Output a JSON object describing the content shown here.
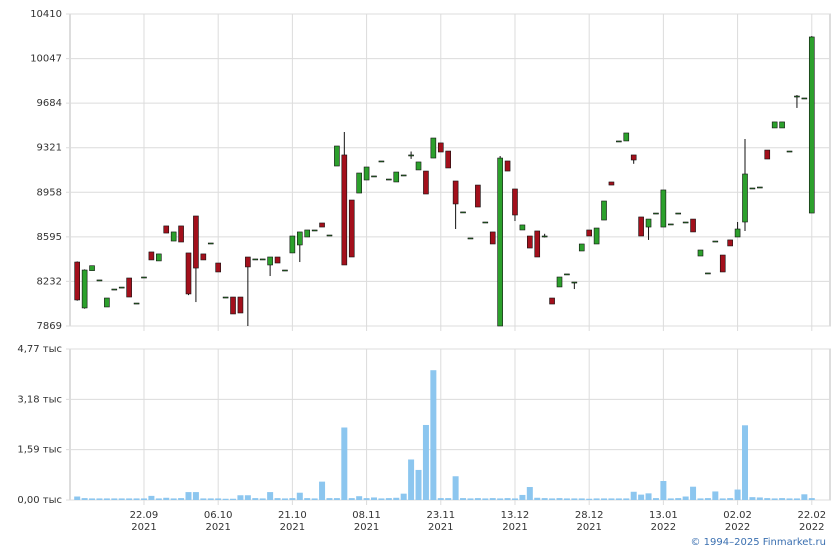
{
  "chart_data": [
    {
      "type": "candlestick",
      "ylim": [
        7869,
        10410
      ],
      "yticks": [
        7869,
        8232,
        8595,
        8958,
        9321,
        9684,
        10047,
        10410
      ],
      "grid": true,
      "up_color": "#2ca02c",
      "down_color": "#a3101c",
      "open": [
        8390,
        8016,
        8320,
        8244,
        8024,
        8170,
        8186,
        8260,
        8056,
        8268,
        8472,
        8399,
        8684,
        8561,
        8684,
        8464,
        8765,
        8456,
        8545,
        8382,
        8105,
        8105,
        8105,
        8431,
        8415,
        8415,
        8366,
        8431,
        8325,
        8464,
        8529,
        8594,
        8651,
        8708,
        8610,
        9172,
        9262,
        8895,
        8952,
        9058,
        9091,
        9213,
        9066,
        9042,
        9099,
        9262,
        9140,
        9131,
        9237,
        9360,
        9294,
        9050,
        8798,
        8586,
        9017,
        8716,
        8635,
        7869,
        9213,
        8985,
        8651,
        8602,
        8643,
        8602,
        8097,
        8187,
        8293,
        8227,
        8480,
        8651,
        8537,
        8732,
        9042,
        9376,
        9376,
        9262,
        8757,
        8675,
        8789,
        8675,
        8700,
        8789,
        8716,
        8740,
        8439,
        8301,
        8561,
        8447,
        8570,
        8594,
        8716,
        8993,
        9001,
        9302,
        9482,
        9482,
        9294,
        9742,
        9726,
        8789
      ],
      "high": [
        8395,
        8330,
        8360,
        8244,
        8097,
        8170,
        8186,
        8260,
        8056,
        8268,
        8472,
        8456,
        8684,
        8635,
        8684,
        8464,
        8765,
        8456,
        8545,
        8382,
        8105,
        8105,
        8105,
        8431,
        8415,
        8415,
        8431,
        8431,
        8325,
        8602,
        8635,
        8651,
        8651,
        8708,
        8610,
        9335,
        9449,
        8895,
        9115,
        9164,
        9091,
        9213,
        9066,
        9123,
        9099,
        9290,
        9205,
        9131,
        9400,
        9360,
        9294,
        9050,
        8798,
        8586,
        9017,
        8716,
        8635,
        9254,
        9213,
        8985,
        8692,
        8602,
        8643,
        8620,
        8097,
        8268,
        8293,
        8227,
        8537,
        8651,
        8667,
        8887,
        9042,
        9376,
        9441,
        9262,
        8757,
        8740,
        8789,
        8977,
        8700,
        8789,
        8716,
        8740,
        8488,
        8301,
        8561,
        8447,
        8570,
        8716,
        9392,
        8993,
        9001,
        9302,
        9531,
        9531,
        9294,
        9750,
        9726,
        10230
      ],
      "low": [
        8075,
        8010,
        8320,
        8244,
        8024,
        8170,
        8186,
        8105,
        8056,
        8268,
        8407,
        8399,
        8626,
        8561,
        8553,
        8120,
        8064,
        8407,
        8545,
        8309,
        8105,
        7967,
        7975,
        7869,
        8415,
        8415,
        8276,
        8382,
        8325,
        8464,
        8390,
        8594,
        8651,
        8675,
        8610,
        9172,
        8366,
        8431,
        8952,
        9058,
        9091,
        9213,
        9066,
        9042,
        9099,
        9230,
        9140,
        8944,
        9237,
        9286,
        9156,
        8659,
        8798,
        8586,
        8838,
        8716,
        8537,
        7869,
        9131,
        8724,
        8651,
        8504,
        8431,
        8590,
        8048,
        8187,
        8293,
        8170,
        8480,
        8602,
        8537,
        8732,
        9017,
        9376,
        9376,
        9190,
        8602,
        8570,
        8789,
        8675,
        8700,
        8789,
        8716,
        8635,
        8439,
        8301,
        8561,
        8309,
        8521,
        8594,
        8643,
        8993,
        9001,
        9229,
        9482,
        9482,
        9294,
        9645,
        9726,
        8789
      ],
      "close": [
        8081,
        8325,
        8360,
        8244,
        8097,
        8170,
        8186,
        8105,
        8056,
        8268,
        8407,
        8456,
        8626,
        8635,
        8553,
        8130,
        8341,
        8407,
        8545,
        8309,
        8105,
        7967,
        7975,
        8350,
        8415,
        8415,
        8431,
        8382,
        8325,
        8602,
        8635,
        8651,
        8651,
        8675,
        8610,
        9335,
        8366,
        8431,
        9115,
        9164,
        9091,
        9213,
        9066,
        9123,
        9099,
        9262,
        9205,
        8944,
        9400,
        9286,
        9156,
        8863,
        8798,
        8586,
        8838,
        8716,
        8537,
        9237,
        9131,
        8773,
        8692,
        8504,
        8431,
        8602,
        8048,
        8268,
        8293,
        8227,
        8537,
        8602,
        8667,
        8887,
        9017,
        9376,
        9441,
        9221,
        8602,
        8740,
        8789,
        8977,
        8700,
        8789,
        8716,
        8635,
        8488,
        8301,
        8561,
        8309,
        8521,
        8659,
        9107,
        8993,
        9001,
        9229,
        9531,
        9531,
        9294,
        9742,
        9726,
        10223
      ]
    },
    {
      "type": "bar",
      "color": "#8cc6ef",
      "ylim": [
        0,
        4770
      ],
      "yticks": [
        {
          "value": 0,
          "label": "0,00 тыс"
        },
        {
          "value": 1590,
          "label": "1,59 тыс"
        },
        {
          "value": 3180,
          "label": "3,18 тыс"
        },
        {
          "value": 4770,
          "label": "4,77 тыс"
        }
      ],
      "grid": true,
      "categories": [
        null,
        null,
        null,
        null,
        null,
        null,
        null,
        null,
        null,
        "22.09",
        null,
        null,
        null,
        null,
        null,
        null,
        null,
        null,
        null,
        "06.10",
        null,
        null,
        null,
        null,
        null,
        null,
        null,
        null,
        null,
        "21.10",
        null,
        null,
        null,
        null,
        null,
        null,
        null,
        null,
        null,
        "08.11",
        null,
        null,
        null,
        null,
        null,
        null,
        null,
        null,
        null,
        "23.11",
        null,
        null,
        null,
        null,
        null,
        null,
        null,
        null,
        null,
        "13.12",
        null,
        null,
        null,
        null,
        null,
        null,
        null,
        null,
        null,
        "28.12",
        null,
        null,
        null,
        null,
        null,
        null,
        null,
        null,
        null,
        "13.01",
        null,
        null,
        null,
        null,
        null,
        null,
        null,
        null,
        null,
        "02.02",
        null,
        null,
        null,
        null,
        null,
        null,
        null,
        null,
        null,
        "22.02"
      ],
      "years": [
        null,
        null,
        null,
        null,
        null,
        null,
        null,
        null,
        null,
        "2021",
        null,
        null,
        null,
        null,
        null,
        null,
        null,
        null,
        null,
        "2021",
        null,
        null,
        null,
        null,
        null,
        null,
        null,
        null,
        null,
        "2021",
        null,
        null,
        null,
        null,
        null,
        null,
        null,
        null,
        null,
        "2021",
        null,
        null,
        null,
        null,
        null,
        null,
        null,
        null,
        null,
        "2021",
        null,
        null,
        null,
        null,
        null,
        null,
        null,
        null,
        null,
        "2021",
        null,
        null,
        null,
        null,
        null,
        null,
        null,
        null,
        null,
        "2021",
        null,
        null,
        null,
        null,
        null,
        null,
        null,
        null,
        null,
        "2022",
        null,
        null,
        null,
        null,
        null,
        null,
        null,
        null,
        null,
        "2022",
        null,
        null,
        null,
        null,
        null,
        null,
        null,
        null,
        null,
        "2022"
      ],
      "values": [
        110,
        60,
        50,
        50,
        50,
        50,
        50,
        50,
        50,
        50,
        130,
        50,
        70,
        50,
        60,
        250,
        250,
        50,
        50,
        50,
        40,
        40,
        150,
        150,
        60,
        50,
        250,
        60,
        50,
        60,
        230,
        60,
        50,
        580,
        60,
        60,
        2290,
        60,
        120,
        60,
        80,
        50,
        60,
        70,
        200,
        1280,
        950,
        2370,
        4100,
        60,
        60,
        750,
        60,
        50,
        60,
        50,
        60,
        50,
        60,
        50,
        160,
        410,
        70,
        60,
        50,
        60,
        50,
        50,
        50,
        40,
        50,
        50,
        50,
        50,
        50,
        260,
        170,
        210,
        60,
        600,
        50,
        60,
        110,
        420,
        50,
        60,
        270,
        50,
        60,
        330,
        2360,
        90,
        80,
        60,
        50,
        60,
        50,
        50,
        180,
        60
      ]
    }
  ],
  "credit": "© 1994–2025 Finmarket.ru"
}
